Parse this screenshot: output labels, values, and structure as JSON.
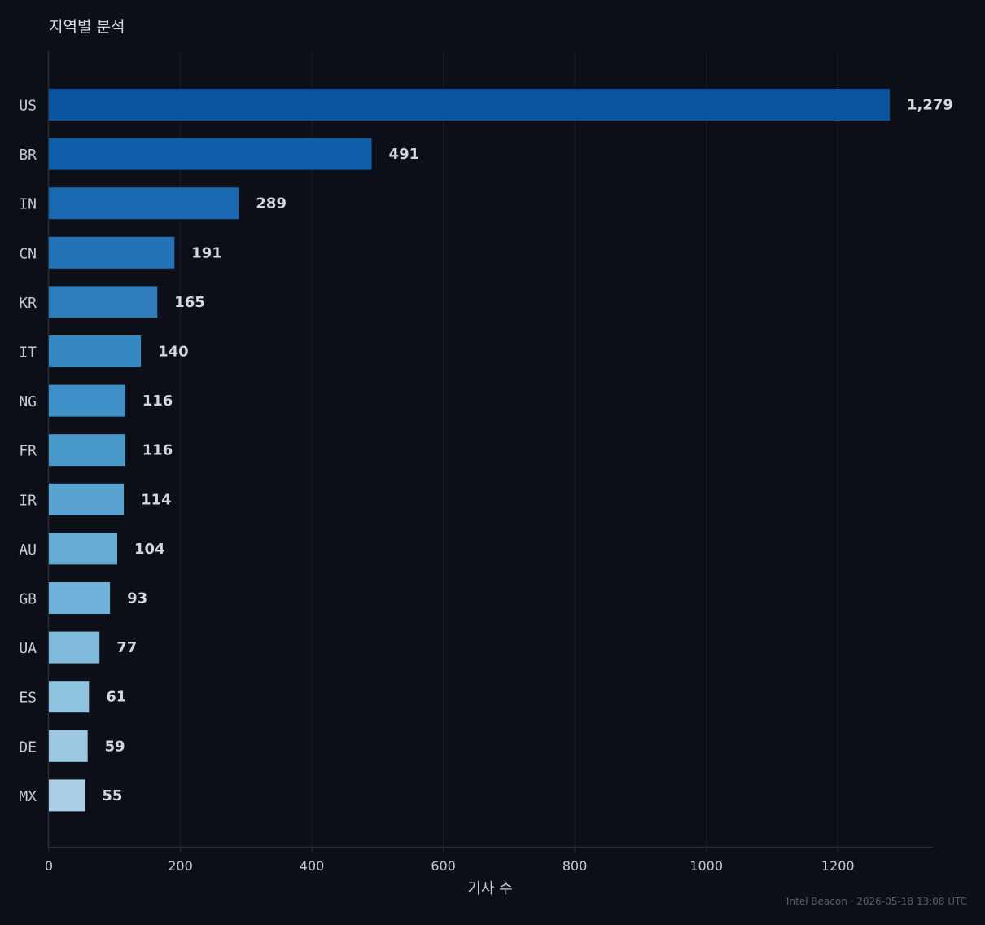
{
  "chart_data": {
    "type": "bar",
    "orientation": "horizontal",
    "title": "지역별 분석",
    "xlabel": "기사 수",
    "ylabel": "",
    "categories": [
      "US",
      "BR",
      "IN",
      "CN",
      "KR",
      "IT",
      "NG",
      "FR",
      "IR",
      "AU",
      "GB",
      "UA",
      "ES",
      "DE",
      "MX"
    ],
    "values": [
      1279,
      491,
      289,
      191,
      165,
      140,
      116,
      116,
      114,
      104,
      93,
      77,
      61,
      59,
      55
    ],
    "value_labels": [
      "1,279",
      "491",
      "289",
      "191",
      "165",
      "140",
      "116",
      "116",
      "114",
      "104",
      "93",
      "77",
      "61",
      "59",
      "55"
    ],
    "colors": [
      "#0b55a0",
      "#0f5fab",
      "#1a68b2",
      "#2472b8",
      "#2f7dbd",
      "#3588c2",
      "#3f90c8",
      "#4a99cc",
      "#58a3cf",
      "#65acd4",
      "#6fb2da",
      "#80bbdc",
      "#8fc4e0",
      "#9cc9e1",
      "#aacfe6"
    ],
    "xticks": [
      0,
      200,
      400,
      600,
      800,
      1000,
      1200
    ],
    "xlim": [
      0,
      1340
    ],
    "grid": true,
    "legend": "none"
  },
  "footer": "Intel Beacon · 2026-05-18 13:08 UTC"
}
